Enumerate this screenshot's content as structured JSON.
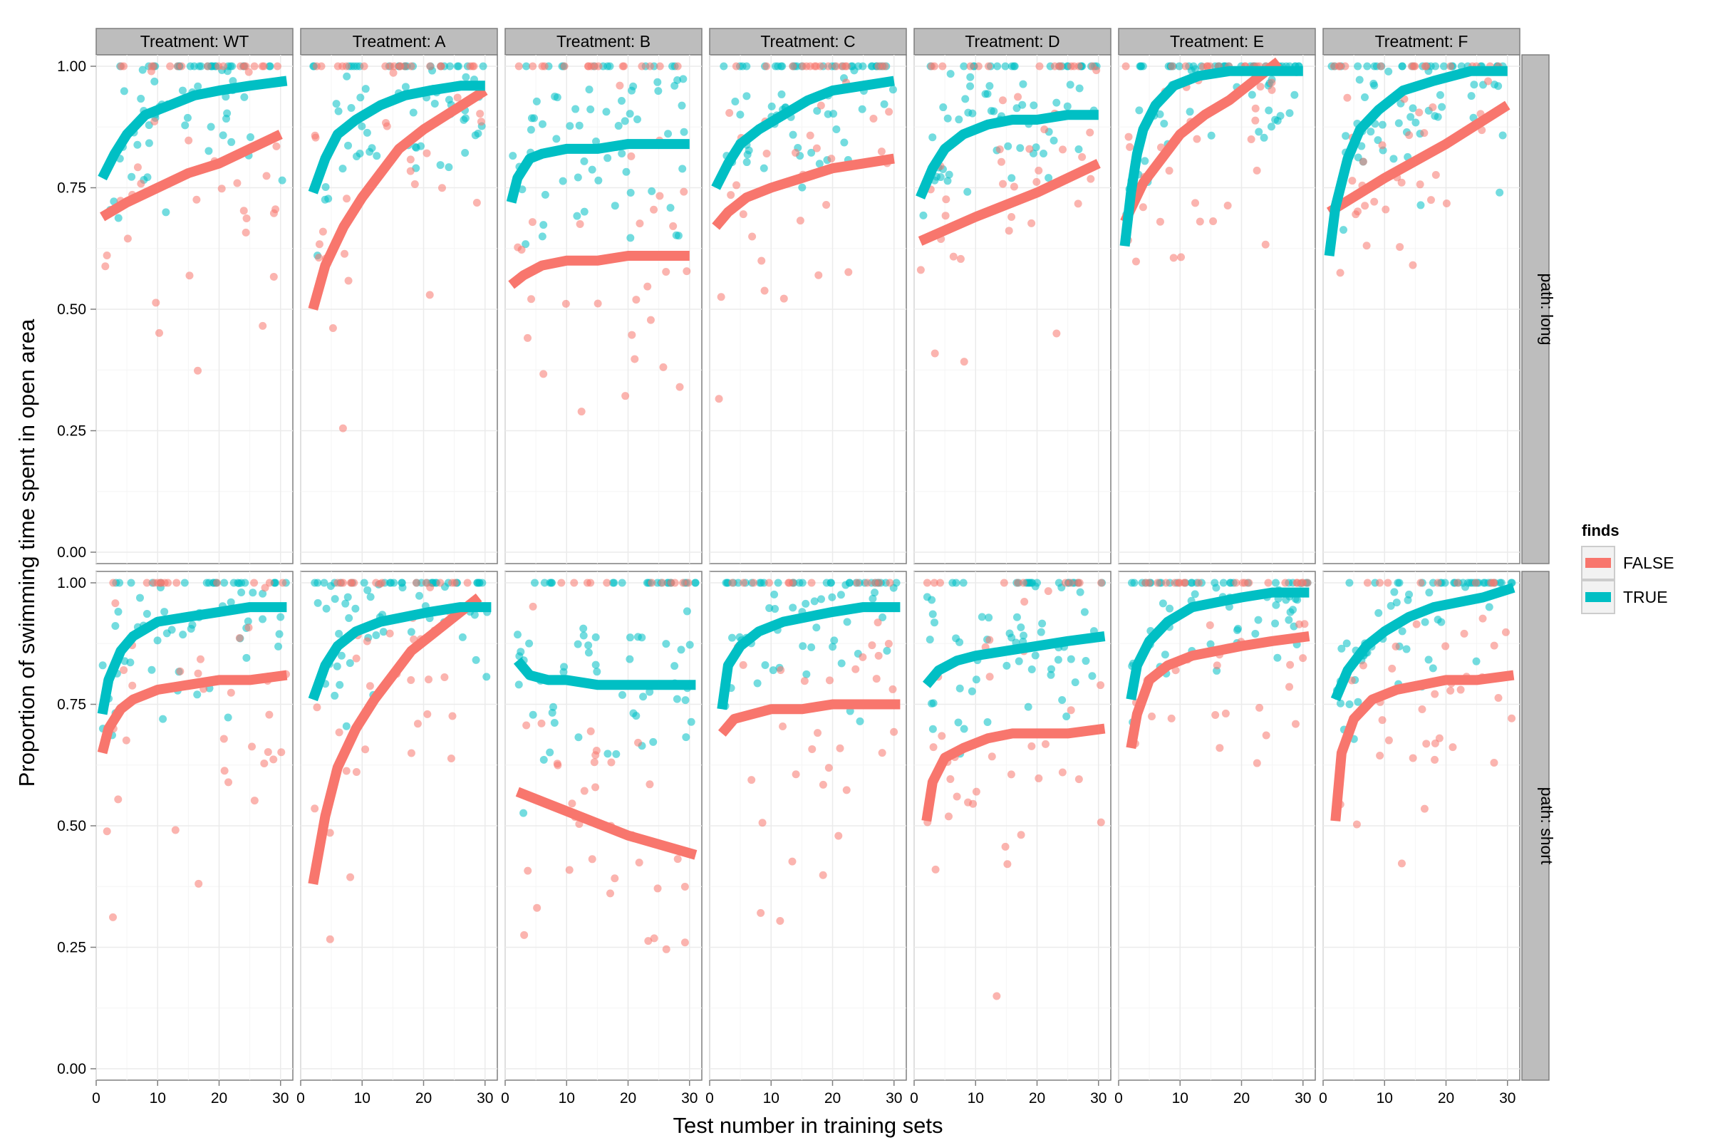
{
  "chart_data": {
    "type": "scatter",
    "xlabel": "Test number in training sets",
    "ylabel": "Proportion of swimming time spent in open area",
    "xlim": [
      0,
      32
    ],
    "ylim": [
      0,
      1
    ],
    "x_ticks": [
      "0",
      "10",
      "20",
      "30"
    ],
    "y_ticks": [
      "0.00",
      "0.25",
      "0.50",
      "0.75",
      "1.00"
    ],
    "grid": true,
    "legend": {
      "title": "finds",
      "placement": "right",
      "entries": [
        "FALSE",
        "TRUE"
      ]
    },
    "colors": {
      "FALSE": "#F8766D",
      "TRUE": "#00BFC4",
      "strip_fill": "#bdbdbd",
      "panel_bg": "#ffffff",
      "grid": "#ebebeb"
    },
    "columns": [
      "Treatment: WT",
      "Treatment: A",
      "Treatment: B",
      "Treatment: C",
      "Treatment: D",
      "Treatment: E",
      "Treatment: F"
    ],
    "rows": [
      "path: long",
      "path: short"
    ],
    "panels": [
      {
        "col": 0,
        "row": 0,
        "fits": {
          "FALSE": {
            "x": [
              1,
              5,
              10,
              15,
              20,
              25,
              30
            ],
            "y": [
              0.69,
              0.72,
              0.75,
              0.78,
              0.8,
              0.83,
              0.86
            ]
          },
          "TRUE": {
            "x": [
              1,
              3,
              5,
              8,
              12,
              16,
              20,
              25,
              31
            ],
            "y": [
              0.77,
              0.82,
              0.86,
              0.9,
              0.92,
              0.94,
              0.95,
              0.96,
              0.97
            ]
          }
        }
      },
      {
        "col": 1,
        "row": 0,
        "fits": {
          "FALSE": {
            "x": [
              2,
              4,
              7,
              10,
              13,
              16,
              20,
              25,
              30
            ],
            "y": [
              0.5,
              0.59,
              0.67,
              0.73,
              0.78,
              0.83,
              0.87,
              0.91,
              0.95
            ]
          },
          "TRUE": {
            "x": [
              2,
              4,
              6,
              9,
              13,
              17,
              21,
              26,
              30
            ],
            "y": [
              0.74,
              0.81,
              0.86,
              0.89,
              0.92,
              0.94,
              0.95,
              0.96,
              0.96
            ]
          }
        }
      },
      {
        "col": 2,
        "row": 0,
        "fits": {
          "FALSE": {
            "x": [
              1,
              3,
              6,
              10,
              15,
              20,
              25,
              30
            ],
            "y": [
              0.55,
              0.57,
              0.59,
              0.6,
              0.6,
              0.61,
              0.61,
              0.61
            ]
          },
          "TRUE": {
            "x": [
              1,
              2,
              4,
              6,
              10,
              15,
              20,
              25,
              30
            ],
            "y": [
              0.72,
              0.77,
              0.81,
              0.82,
              0.83,
              0.83,
              0.84,
              0.84,
              0.84
            ]
          }
        }
      },
      {
        "col": 3,
        "row": 0,
        "fits": {
          "FALSE": {
            "x": [
              1,
              3,
              6,
              10,
              15,
              20,
              25,
              30
            ],
            "y": [
              0.67,
              0.7,
              0.73,
              0.75,
              0.77,
              0.79,
              0.8,
              0.81
            ]
          },
          "TRUE": {
            "x": [
              1,
              3,
              5,
              8,
              12,
              16,
              20,
              25,
              30
            ],
            "y": [
              0.75,
              0.8,
              0.84,
              0.87,
              0.9,
              0.93,
              0.95,
              0.96,
              0.97
            ]
          }
        }
      },
      {
        "col": 4,
        "row": 0,
        "fits": {
          "FALSE": {
            "x": [
              1,
              10,
              20,
              30
            ],
            "y": [
              0.64,
              0.69,
              0.74,
              0.8
            ]
          },
          "TRUE": {
            "x": [
              1,
              3,
              5,
              8,
              12,
              16,
              20,
              25,
              30
            ],
            "y": [
              0.73,
              0.79,
              0.83,
              0.86,
              0.88,
              0.89,
              0.89,
              0.9,
              0.9
            ]
          }
        }
      },
      {
        "col": 5,
        "row": 0,
        "fits": {
          "FALSE": {
            "x": [
              1,
              4,
              7,
              10,
              14,
              18,
              22,
              26
            ],
            "y": [
              0.68,
              0.76,
              0.81,
              0.86,
              0.9,
              0.93,
              0.97,
              1.01
            ]
          },
          "TRUE": {
            "x": [
              1,
              2,
              3,
              4,
              6,
              9,
              13,
              18,
              24,
              30
            ],
            "y": [
              0.63,
              0.74,
              0.82,
              0.87,
              0.92,
              0.96,
              0.98,
              0.99,
              0.99,
              0.99
            ]
          }
        }
      },
      {
        "col": 6,
        "row": 0,
        "fits": {
          "FALSE": {
            "x": [
              1,
              10,
              20,
              30
            ],
            "y": [
              0.7,
              0.77,
              0.84,
              0.92
            ]
          },
          "TRUE": {
            "x": [
              1,
              2,
              4,
              6,
              9,
              13,
              18,
              24,
              30
            ],
            "y": [
              0.61,
              0.71,
              0.81,
              0.87,
              0.91,
              0.95,
              0.97,
              0.99,
              0.99
            ]
          }
        }
      },
      {
        "col": 0,
        "row": 1,
        "fits": {
          "FALSE": {
            "x": [
              1,
              2,
              4,
              6,
              10,
              15,
              20,
              25,
              31
            ],
            "y": [
              0.65,
              0.7,
              0.74,
              0.76,
              0.78,
              0.79,
              0.8,
              0.8,
              0.81
            ]
          },
          "TRUE": {
            "x": [
              1,
              2,
              4,
              6,
              10,
              15,
              20,
              25,
              31
            ],
            "y": [
              0.73,
              0.8,
              0.86,
              0.89,
              0.92,
              0.93,
              0.94,
              0.95,
              0.95
            ]
          }
        }
      },
      {
        "col": 1,
        "row": 1,
        "fits": {
          "FALSE": {
            "x": [
              2,
              4,
              6,
              9,
              12,
              15,
              18,
              22,
              26,
              29
            ],
            "y": [
              0.38,
              0.52,
              0.62,
              0.7,
              0.76,
              0.81,
              0.86,
              0.9,
              0.94,
              0.97
            ]
          },
          "TRUE": {
            "x": [
              2,
              4,
              6,
              9,
              13,
              17,
              21,
              26,
              31
            ],
            "y": [
              0.76,
              0.83,
              0.87,
              0.9,
              0.92,
              0.93,
              0.94,
              0.95,
              0.95
            ]
          }
        }
      },
      {
        "col": 2,
        "row": 1,
        "fits": {
          "FALSE": {
            "x": [
              2,
              10,
              20,
              31
            ],
            "y": [
              0.57,
              0.53,
              0.48,
              0.44
            ]
          },
          "TRUE": {
            "x": [
              2,
              4,
              7,
              10,
              15,
              20,
              25,
              31
            ],
            "y": [
              0.84,
              0.81,
              0.8,
              0.8,
              0.79,
              0.79,
              0.79,
              0.79
            ]
          }
        }
      },
      {
        "col": 3,
        "row": 1,
        "fits": {
          "FALSE": {
            "x": [
              2,
              4,
              7,
              10,
              15,
              20,
              25,
              31
            ],
            "y": [
              0.69,
              0.72,
              0.73,
              0.74,
              0.74,
              0.75,
              0.75,
              0.75
            ]
          },
          "TRUE": {
            "x": [
              2,
              3,
              5,
              8,
              12,
              16,
              20,
              25,
              31
            ],
            "y": [
              0.74,
              0.83,
              0.87,
              0.9,
              0.92,
              0.93,
              0.94,
              0.95,
              0.95
            ]
          }
        }
      },
      {
        "col": 4,
        "row": 1,
        "fits": {
          "FALSE": {
            "x": [
              2,
              3,
              5,
              8,
              12,
              16,
              20,
              25,
              31
            ],
            "y": [
              0.51,
              0.59,
              0.64,
              0.66,
              0.68,
              0.69,
              0.69,
              0.69,
              0.7
            ]
          },
          "TRUE": {
            "x": [
              2,
              4,
              7,
              10,
              15,
              20,
              25,
              31
            ],
            "y": [
              0.79,
              0.82,
              0.84,
              0.85,
              0.86,
              0.87,
              0.88,
              0.89
            ]
          }
        }
      },
      {
        "col": 5,
        "row": 1,
        "fits": {
          "FALSE": {
            "x": [
              2,
              3,
              5,
              8,
              12,
              16,
              20,
              25,
              31
            ],
            "y": [
              0.66,
              0.73,
              0.8,
              0.83,
              0.85,
              0.86,
              0.87,
              0.88,
              0.89
            ]
          },
          "TRUE": {
            "x": [
              2,
              3,
              5,
              8,
              12,
              16,
              20,
              25,
              31
            ],
            "y": [
              0.76,
              0.83,
              0.88,
              0.92,
              0.95,
              0.96,
              0.97,
              0.98,
              0.98
            ]
          }
        }
      },
      {
        "col": 6,
        "row": 1,
        "fits": {
          "FALSE": {
            "x": [
              2,
              3,
              5,
              8,
              12,
              16,
              20,
              25,
              31
            ],
            "y": [
              0.51,
              0.65,
              0.72,
              0.76,
              0.78,
              0.79,
              0.8,
              0.8,
              0.81
            ]
          },
          "TRUE": {
            "x": [
              2,
              4,
              7,
              10,
              14,
              18,
              22,
              26,
              31
            ],
            "y": [
              0.76,
              0.82,
              0.87,
              0.9,
              0.93,
              0.95,
              0.96,
              0.97,
              0.99
            ]
          }
        }
      }
    ]
  }
}
